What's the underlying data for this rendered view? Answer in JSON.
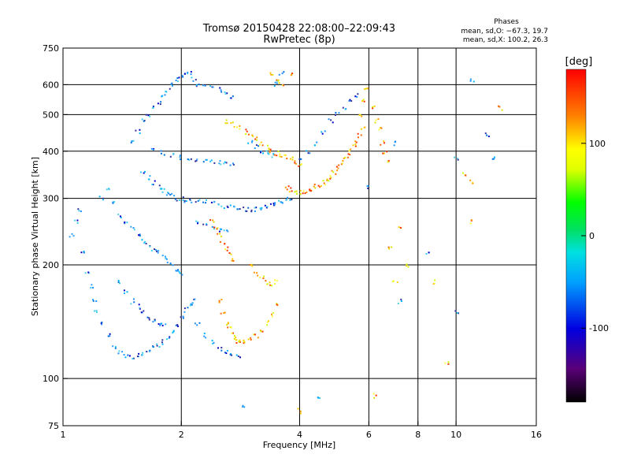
{
  "chart_data": {
    "type": "scatter",
    "title": "Tromsø 20150428 22:08:00–22:09:43",
    "subtitle": "RwPretec (8p)",
    "xlabel": "Frequency [MHz]",
    "ylabel": "Stationary phase Virtual Height [km]",
    "xscale": "log",
    "yscale": "log",
    "xlim": [
      1,
      16
    ],
    "ylim": [
      75,
      750
    ],
    "xticks": [
      1,
      2,
      4,
      6,
      8,
      10,
      16
    ],
    "xgrid_lines": [
      2,
      4,
      6,
      8,
      10
    ],
    "yticks": [
      75,
      100,
      200,
      300,
      400,
      500,
      600,
      750
    ],
    "ygrid_lines": [
      100,
      200,
      300,
      400,
      500,
      600
    ],
    "grid": true,
    "colorbar": {
      "label": "[deg]",
      "range": [
        -180,
        180
      ],
      "ticks": [
        100,
        0,
        -100
      ],
      "colormap": "rainbow (black-purple-blue-cyan-green-yellow-orange-red)"
    },
    "legend": {
      "title": "Phases",
      "lines": [
        "mean, sd,O: −67.3, 19.7",
        "mean, sd,X: 100.2, 26.3"
      ],
      "placement": "top-right"
    },
    "series": [
      {
        "description": "O-mode traces (blue/cyan, phase ≈ −67)",
        "points": [
          [
            1.05,
            240
          ],
          [
            1.08,
            260
          ],
          [
            1.1,
            280
          ],
          [
            1.12,
            215
          ],
          [
            1.15,
            190
          ],
          [
            1.18,
            175
          ],
          [
            1.2,
            160
          ],
          [
            1.22,
            150
          ],
          [
            1.25,
            140
          ],
          [
            1.3,
            130
          ],
          [
            1.35,
            122
          ],
          [
            1.4,
            118
          ],
          [
            1.45,
            115
          ],
          [
            1.5,
            114
          ],
          [
            1.55,
            115
          ],
          [
            1.6,
            116
          ],
          [
            1.65,
            118
          ],
          [
            1.7,
            120
          ],
          [
            1.75,
            122
          ],
          [
            1.8,
            125
          ],
          [
            1.85,
            128
          ],
          [
            1.9,
            132
          ],
          [
            1.95,
            138
          ],
          [
            2.0,
            145
          ],
          [
            2.05,
            152
          ],
          [
            2.1,
            158
          ],
          [
            2.15,
            160
          ],
          [
            1.25,
            300
          ],
          [
            1.3,
            320
          ],
          [
            1.35,
            290
          ],
          [
            1.4,
            270
          ],
          [
            1.45,
            260
          ],
          [
            1.5,
            250
          ],
          [
            1.55,
            240
          ],
          [
            1.6,
            230
          ],
          [
            1.65,
            225
          ],
          [
            1.7,
            220
          ],
          [
            1.75,
            215
          ],
          [
            1.8,
            210
          ],
          [
            1.85,
            205
          ],
          [
            1.9,
            200
          ],
          [
            1.95,
            195
          ],
          [
            2.0,
            190
          ],
          [
            1.5,
            420
          ],
          [
            1.55,
            450
          ],
          [
            1.6,
            480
          ],
          [
            1.65,
            500
          ],
          [
            1.7,
            520
          ],
          [
            1.75,
            540
          ],
          [
            1.8,
            560
          ],
          [
            1.85,
            580
          ],
          [
            1.9,
            600
          ],
          [
            1.95,
            620
          ],
          [
            2.0,
            635
          ],
          [
            2.05,
            640
          ],
          [
            2.1,
            640
          ],
          [
            2.15,
            620
          ],
          [
            2.2,
            600
          ],
          [
            1.6,
            350
          ],
          [
            1.65,
            340
          ],
          [
            1.7,
            330
          ],
          [
            1.75,
            320
          ],
          [
            1.8,
            315
          ],
          [
            1.85,
            310
          ],
          [
            1.9,
            305
          ],
          [
            1.95,
            300
          ],
          [
            2.0,
            298
          ],
          [
            2.05,
            297
          ],
          [
            2.1,
            296
          ],
          [
            2.2,
            295
          ],
          [
            2.3,
            293
          ],
          [
            2.4,
            290
          ],
          [
            2.5,
            288
          ],
          [
            2.6,
            286
          ],
          [
            2.7,
            284
          ],
          [
            2.8,
            282
          ],
          [
            2.9,
            280
          ],
          [
            3.0,
            279
          ],
          [
            3.1,
            280
          ],
          [
            3.2,
            282
          ],
          [
            3.3,
            285
          ],
          [
            3.4,
            288
          ],
          [
            3.5,
            292
          ],
          [
            3.6,
            295
          ],
          [
            3.7,
            298
          ],
          [
            3.8,
            300
          ],
          [
            1.7,
            400
          ],
          [
            1.8,
            395
          ],
          [
            1.9,
            390
          ],
          [
            2.0,
            385
          ],
          [
            2.1,
            380
          ],
          [
            2.2,
            378
          ],
          [
            2.3,
            376
          ],
          [
            2.4,
            375
          ],
          [
            2.5,
            374
          ],
          [
            2.6,
            372
          ],
          [
            2.7,
            370
          ],
          [
            1.4,
            180
          ],
          [
            1.45,
            170
          ],
          [
            1.5,
            160
          ],
          [
            1.55,
            155
          ],
          [
            1.6,
            150
          ],
          [
            1.65,
            145
          ],
          [
            1.7,
            142
          ],
          [
            1.75,
            140
          ],
          [
            1.8,
            138
          ],
          [
            2.3,
            600
          ],
          [
            2.4,
            590
          ],
          [
            2.5,
            580
          ],
          [
            2.6,
            570
          ],
          [
            2.7,
            560
          ],
          [
            2.2,
            260
          ],
          [
            2.3,
            255
          ],
          [
            2.4,
            250
          ],
          [
            2.5,
            248
          ],
          [
            2.6,
            245
          ],
          [
            2.2,
            140
          ],
          [
            2.3,
            130
          ],
          [
            2.4,
            125
          ],
          [
            2.5,
            120
          ],
          [
            2.6,
            118
          ],
          [
            2.7,
            116
          ],
          [
            2.8,
            115
          ],
          [
            4.0,
            380
          ],
          [
            4.2,
            400
          ],
          [
            4.4,
            420
          ],
          [
            4.6,
            450
          ],
          [
            4.8,
            480
          ],
          [
            5.0,
            500
          ],
          [
            5.2,
            520
          ],
          [
            5.4,
            540
          ],
          [
            5.6,
            560
          ],
          [
            3.0,
            420
          ],
          [
            3.1,
            410
          ],
          [
            3.2,
            400
          ],
          [
            3.3,
            395
          ],
          [
            3.4,
            390
          ],
          [
            3.5,
            600
          ],
          [
            3.55,
            620
          ],
          [
            3.6,
            640
          ],
          [
            12.0,
            440
          ],
          [
            12.5,
            380
          ],
          [
            11.0,
            620
          ],
          [
            10.0,
            380
          ],
          [
            7.2,
            160
          ],
          [
            10.0,
            150
          ],
          [
            7.0,
            420
          ],
          [
            8.5,
            215
          ],
          [
            6.0,
            320
          ],
          [
            4.5,
            90
          ],
          [
            2.9,
            85
          ]
        ]
      },
      {
        "description": "X-mode traces (yellow/orange, phase ≈ 100)",
        "points": [
          [
            3.7,
            320
          ],
          [
            3.8,
            315
          ],
          [
            3.9,
            312
          ],
          [
            4.0,
            310
          ],
          [
            4.1,
            312
          ],
          [
            4.2,
            315
          ],
          [
            4.3,
            318
          ],
          [
            4.4,
            322
          ],
          [
            4.5,
            326
          ],
          [
            4.6,
            330
          ],
          [
            4.7,
            336
          ],
          [
            4.8,
            342
          ],
          [
            4.9,
            350
          ],
          [
            5.0,
            360
          ],
          [
            5.1,
            370
          ],
          [
            5.2,
            380
          ],
          [
            5.3,
            390
          ],
          [
            5.4,
            400
          ],
          [
            5.5,
            410
          ],
          [
            5.6,
            420
          ],
          [
            5.7,
            440
          ],
          [
            5.8,
            460
          ],
          [
            2.6,
            480
          ],
          [
            2.7,
            470
          ],
          [
            2.8,
            460
          ],
          [
            2.9,
            450
          ],
          [
            3.0,
            440
          ],
          [
            3.1,
            430
          ],
          [
            3.2,
            420
          ],
          [
            3.3,
            410
          ],
          [
            3.4,
            400
          ],
          [
            3.5,
            395
          ],
          [
            3.6,
            390
          ],
          [
            3.7,
            385
          ],
          [
            3.8,
            380
          ],
          [
            3.9,
            375
          ],
          [
            4.0,
            370
          ],
          [
            2.5,
            160
          ],
          [
            2.55,
            150
          ],
          [
            2.6,
            140
          ],
          [
            2.65,
            135
          ],
          [
            2.7,
            130
          ],
          [
            2.75,
            128
          ],
          [
            2.8,
            126
          ],
          [
            2.85,
            125
          ],
          [
            2.9,
            125
          ],
          [
            3.0,
            127
          ],
          [
            3.1,
            130
          ],
          [
            3.2,
            135
          ],
          [
            3.3,
            140
          ],
          [
            3.4,
            148
          ],
          [
            3.5,
            158
          ],
          [
            2.4,
            260
          ],
          [
            2.45,
            250
          ],
          [
            2.5,
            240
          ],
          [
            2.55,
            230
          ],
          [
            2.6,
            220
          ],
          [
            2.65,
            212
          ],
          [
            2.7,
            205
          ],
          [
            3.0,
            200
          ],
          [
            3.1,
            190
          ],
          [
            3.2,
            185
          ],
          [
            3.3,
            180
          ],
          [
            3.4,
            178
          ],
          [
            3.5,
            180
          ],
          [
            3.4,
            640
          ],
          [
            3.5,
            620
          ],
          [
            3.6,
            600
          ],
          [
            3.8,
            640
          ],
          [
            5.7,
            500
          ],
          [
            5.8,
            540
          ],
          [
            5.9,
            580
          ],
          [
            6.2,
            520
          ],
          [
            6.3,
            480
          ],
          [
            6.4,
            460
          ],
          [
            6.5,
            420
          ],
          [
            6.6,
            400
          ],
          [
            6.7,
            380
          ],
          [
            7.2,
            250
          ],
          [
            6.8,
            220
          ],
          [
            7.0,
            180
          ],
          [
            7.5,
            200
          ],
          [
            8.8,
            180
          ],
          [
            9.5,
            110
          ],
          [
            10.5,
            350
          ],
          [
            11.0,
            330
          ],
          [
            13.0,
            520
          ],
          [
            6.2,
            90
          ],
          [
            4.0,
            82
          ],
          [
            11.0,
            260
          ]
        ]
      }
    ]
  }
}
